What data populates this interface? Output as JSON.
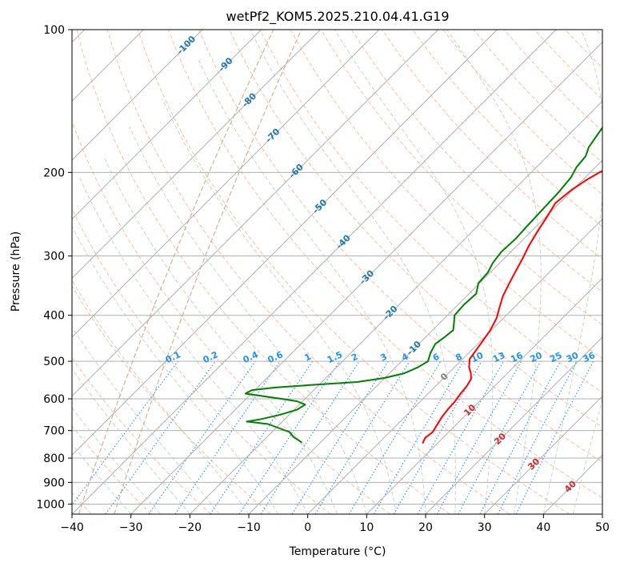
{
  "chart_data": {
    "type": "line",
    "title": "wetPf2_KOM5.2025.210.04.41.G19",
    "xlabel": "Temperature (°C)",
    "ylabel": "Pressure (hPa)",
    "xlim": [
      -40,
      50
    ],
    "ylim": [
      1050,
      100
    ],
    "y_scale": "log",
    "grid": true,
    "x_ticks": [
      "−40",
      "−30",
      "−20",
      "−10",
      "0",
      "10",
      "20",
      "30",
      "40",
      "50"
    ],
    "x_tick_values": [
      -40,
      -30,
      -20,
      -10,
      0,
      10,
      20,
      30,
      40,
      50
    ],
    "y_ticks": [
      "100",
      "200",
      "300",
      "400",
      "500",
      "600",
      "700",
      "800",
      "900",
      "1000"
    ],
    "y_tick_values": [
      100,
      200,
      300,
      400,
      500,
      600,
      700,
      800,
      900,
      1000
    ],
    "series": [
      {
        "name": "",
        "color": "#ff0000",
        "points": [
          [
            7.5,
            745
          ],
          [
            7.0,
            725
          ],
          [
            7.3,
            705
          ],
          [
            6.8,
            680
          ],
          [
            6.3,
            655
          ],
          [
            6.0,
            630
          ],
          [
            5.9,
            610
          ],
          [
            5.5,
            585
          ],
          [
            5.3,
            565
          ],
          [
            4.8,
            545
          ],
          [
            3.8,
            530
          ],
          [
            2.5,
            515
          ],
          [
            1.2,
            495
          ],
          [
            0.5,
            460
          ],
          [
            -0.2,
            430
          ],
          [
            -1.2,
            405
          ],
          [
            -2.5,
            385
          ],
          [
            -3.8,
            365
          ],
          [
            -4.8,
            345
          ],
          [
            -5.8,
            325
          ],
          [
            -6.8,
            305
          ],
          [
            -8.0,
            285
          ],
          [
            -9.0,
            265
          ],
          [
            -9.8,
            248
          ],
          [
            -10.7,
            232
          ],
          [
            -10.2,
            218
          ],
          [
            -9.4,
            208
          ],
          [
            -8.4,
            200
          ],
          [
            -7.0,
            192
          ],
          [
            -4.8,
            183
          ],
          [
            -2.5,
            176
          ],
          [
            0.0,
            168
          ],
          [
            2.7,
            159
          ],
          [
            5.5,
            150
          ],
          [
            8.3,
            141
          ],
          [
            11.5,
            133
          ],
          [
            15.3,
            126
          ],
          [
            18.2,
            119
          ],
          [
            20.0,
            113
          ],
          [
            21.5,
            107
          ],
          [
            23.4,
            100
          ]
        ]
      },
      {
        "name": "",
        "color": "#008000",
        "points": [
          [
            -13.1,
            742
          ],
          [
            -15.5,
            722
          ],
          [
            -17.0,
            705
          ],
          [
            -22.0,
            678
          ],
          [
            -26.0,
            670
          ],
          [
            -24.0,
            662
          ],
          [
            -21.5,
            648
          ],
          [
            -19.5,
            632
          ],
          [
            -19.0,
            617
          ],
          [
            -21.0,
            607
          ],
          [
            -24.0,
            600
          ],
          [
            -31.0,
            585
          ],
          [
            -30.5,
            575
          ],
          [
            -27.0,
            568
          ],
          [
            -20.5,
            560
          ],
          [
            -14.0,
            553
          ],
          [
            -10.0,
            542
          ],
          [
            -7.5,
            530
          ],
          [
            -6.2,
            515
          ],
          [
            -5.5,
            500
          ],
          [
            -6.5,
            480
          ],
          [
            -7.2,
            460
          ],
          [
            -6.8,
            445
          ],
          [
            -6.5,
            430
          ],
          [
            -7.6,
            415
          ],
          [
            -8.8,
            400
          ],
          [
            -9.0,
            380
          ],
          [
            -8.8,
            360
          ],
          [
            -10.2,
            342
          ],
          [
            -10.4,
            325
          ],
          [
            -11.2,
            310
          ],
          [
            -11.6,
            294
          ],
          [
            -11.4,
            275
          ],
          [
            -11.6,
            260
          ],
          [
            -11.8,
            240
          ],
          [
            -12.0,
            220
          ],
          [
            -12.4,
            205
          ],
          [
            -13.2,
            195
          ],
          [
            -13.5,
            185
          ],
          [
            -14.5,
            177
          ],
          [
            -15.0,
            169
          ],
          [
            -15.5,
            161
          ],
          [
            -16.5,
            152
          ],
          [
            -17.5,
            143
          ],
          [
            -18.5,
            134
          ],
          [
            -18.6,
            126
          ],
          [
            -19.8,
            119
          ],
          [
            -20.5,
            113
          ],
          [
            -21.7,
            107
          ],
          [
            -22.6,
            100
          ]
        ]
      }
    ],
    "reference_lines": {
      "isotherms_color": "#b0b0b0",
      "dry_adiabats_color": "#ffa07a",
      "moist_adiabats_color": "#8fbc8f",
      "mixing_ratio_color": "#1e90ff",
      "zero_line_color": "#c8a882"
    },
    "isotherm_labels": [
      {
        "text": "-100",
        "value": -100,
        "color": "#1f77b4"
      },
      {
        "text": "-90",
        "value": -90,
        "color": "#1f77b4"
      },
      {
        "text": "-80",
        "value": -80,
        "color": "#1f77b4"
      },
      {
        "text": "-70",
        "value": -70,
        "color": "#1f77b4"
      },
      {
        "text": "-60",
        "value": -60,
        "color": "#1f77b4"
      },
      {
        "text": "-50",
        "value": -50,
        "color": "#1f77b4"
      },
      {
        "text": "-40",
        "value": -40,
        "color": "#1f77b4"
      },
      {
        "text": "-30",
        "value": -30,
        "color": "#1f77b4"
      },
      {
        "text": "-20",
        "value": -20,
        "color": "#1f77b4"
      },
      {
        "text": "-10",
        "value": -10,
        "color": "#1f77b4"
      },
      {
        "text": "0",
        "value": 0,
        "color": "#808080"
      },
      {
        "text": "10",
        "value": 10,
        "color": "#d62728"
      },
      {
        "text": "20",
        "value": 20,
        "color": "#d62728"
      },
      {
        "text": "30",
        "value": 30,
        "color": "#d62728"
      },
      {
        "text": "40",
        "value": 40,
        "color": "#d62728"
      }
    ],
    "mixing_ratio_labels": [
      "0.1",
      "0.2",
      "0.4",
      "0.6",
      "1",
      "1.5",
      "2",
      "3",
      "4",
      "6",
      "8",
      "10",
      "13",
      "16",
      "20",
      "25",
      "30",
      "36"
    ],
    "mixing_ratio_values": [
      0.1,
      0.2,
      0.4,
      0.6,
      1,
      1.5,
      2,
      3,
      4,
      6,
      8,
      10,
      13,
      16,
      20,
      25,
      30,
      36
    ]
  }
}
